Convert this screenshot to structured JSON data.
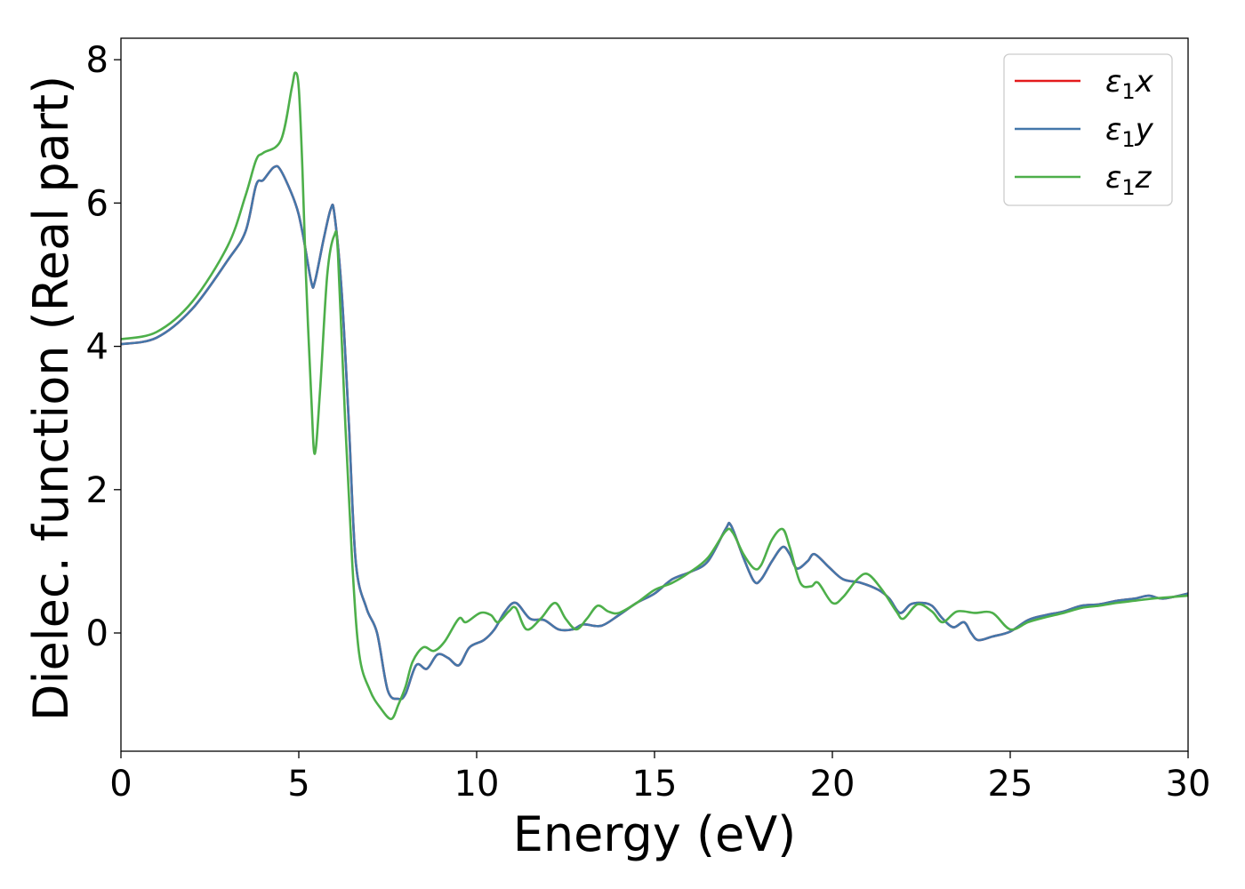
{
  "chart_data": {
    "type": "line",
    "title": "",
    "xlabel": "Energy (eV)",
    "ylabel": "Dielec. function (Real part)",
    "xlim": [
      0,
      30
    ],
    "ylim": [
      -1.65,
      8.3
    ],
    "xticks": [
      0,
      5,
      10,
      15,
      20,
      25,
      30
    ],
    "yticks": [
      0,
      2,
      4,
      6,
      8
    ],
    "grid": false,
    "legend_position": "top-right",
    "series": [
      {
        "name_base": "ε",
        "name_sub": "1",
        "name_suffix": "x",
        "color": "#e41a1c",
        "points": [
          [
            0,
            4.03
          ],
          [
            1,
            4.12
          ],
          [
            2,
            4.52
          ],
          [
            3,
            5.2
          ],
          [
            3.5,
            5.6
          ],
          [
            3.8,
            6.25
          ],
          [
            4.0,
            6.32
          ],
          [
            4.3,
            6.5
          ],
          [
            4.5,
            6.45
          ],
          [
            4.9,
            6.0
          ],
          [
            5.1,
            5.6
          ],
          [
            5.35,
            4.9
          ],
          [
            5.45,
            4.9
          ],
          [
            5.7,
            5.5
          ],
          [
            5.9,
            5.92
          ],
          [
            6.0,
            5.85
          ],
          [
            6.2,
            4.8
          ],
          [
            6.4,
            3.0
          ],
          [
            6.6,
            1.0
          ],
          [
            6.9,
            0.35
          ],
          [
            7.2,
            0.0
          ],
          [
            7.5,
            -0.8
          ],
          [
            7.8,
            -0.92
          ],
          [
            8.0,
            -0.85
          ],
          [
            8.3,
            -0.45
          ],
          [
            8.6,
            -0.5
          ],
          [
            8.9,
            -0.3
          ],
          [
            9.2,
            -0.35
          ],
          [
            9.5,
            -0.45
          ],
          [
            9.8,
            -0.2
          ],
          [
            10.2,
            -0.1
          ],
          [
            10.5,
            0.05
          ],
          [
            10.8,
            0.3
          ],
          [
            11.1,
            0.42
          ],
          [
            11.5,
            0.2
          ],
          [
            11.9,
            0.18
          ],
          [
            12.3,
            0.05
          ],
          [
            12.7,
            0.05
          ],
          [
            13.0,
            0.12
          ],
          [
            13.5,
            0.1
          ],
          [
            14.0,
            0.25
          ],
          [
            14.5,
            0.42
          ],
          [
            15.0,
            0.55
          ],
          [
            15.5,
            0.75
          ],
          [
            16.0,
            0.85
          ],
          [
            16.5,
            1.0
          ],
          [
            17.0,
            1.45
          ],
          [
            17.15,
            1.5
          ],
          [
            17.5,
            1.05
          ],
          [
            17.8,
            0.72
          ],
          [
            18.0,
            0.75
          ],
          [
            18.3,
            1.0
          ],
          [
            18.6,
            1.2
          ],
          [
            18.8,
            1.1
          ],
          [
            19.0,
            0.9
          ],
          [
            19.3,
            1.0
          ],
          [
            19.5,
            1.1
          ],
          [
            19.9,
            0.92
          ],
          [
            20.3,
            0.75
          ],
          [
            20.8,
            0.7
          ],
          [
            21.3,
            0.6
          ],
          [
            21.6,
            0.48
          ],
          [
            21.9,
            0.28
          ],
          [
            22.2,
            0.4
          ],
          [
            22.5,
            0.42
          ],
          [
            22.8,
            0.38
          ],
          [
            23.1,
            0.2
          ],
          [
            23.4,
            0.08
          ],
          [
            23.7,
            0.15
          ],
          [
            23.9,
            0.0
          ],
          [
            24.1,
            -0.1
          ],
          [
            24.5,
            -0.05
          ],
          [
            25.0,
            0.02
          ],
          [
            25.5,
            0.18
          ],
          [
            26.0,
            0.25
          ],
          [
            26.5,
            0.3
          ],
          [
            27.0,
            0.38
          ],
          [
            27.5,
            0.4
          ],
          [
            28.0,
            0.45
          ],
          [
            28.5,
            0.48
          ],
          [
            28.9,
            0.52
          ],
          [
            29.3,
            0.48
          ],
          [
            30,
            0.55
          ]
        ]
      },
      {
        "name_base": "ε",
        "name_sub": "1",
        "name_suffix": "y",
        "color": "#4477aa",
        "points": [
          [
            0,
            4.03
          ],
          [
            1,
            4.12
          ],
          [
            2,
            4.52
          ],
          [
            3,
            5.2
          ],
          [
            3.5,
            5.6
          ],
          [
            3.8,
            6.25
          ],
          [
            4.0,
            6.32
          ],
          [
            4.3,
            6.5
          ],
          [
            4.5,
            6.45
          ],
          [
            4.9,
            6.0
          ],
          [
            5.1,
            5.6
          ],
          [
            5.35,
            4.9
          ],
          [
            5.45,
            4.9
          ],
          [
            5.7,
            5.5
          ],
          [
            5.9,
            5.92
          ],
          [
            6.0,
            5.85
          ],
          [
            6.2,
            4.8
          ],
          [
            6.4,
            3.0
          ],
          [
            6.6,
            1.0
          ],
          [
            6.9,
            0.35
          ],
          [
            7.2,
            0.0
          ],
          [
            7.5,
            -0.8
          ],
          [
            7.8,
            -0.92
          ],
          [
            8.0,
            -0.85
          ],
          [
            8.3,
            -0.45
          ],
          [
            8.6,
            -0.5
          ],
          [
            8.9,
            -0.3
          ],
          [
            9.2,
            -0.35
          ],
          [
            9.5,
            -0.45
          ],
          [
            9.8,
            -0.2
          ],
          [
            10.2,
            -0.1
          ],
          [
            10.5,
            0.05
          ],
          [
            10.8,
            0.3
          ],
          [
            11.1,
            0.42
          ],
          [
            11.5,
            0.2
          ],
          [
            11.9,
            0.18
          ],
          [
            12.3,
            0.05
          ],
          [
            12.7,
            0.05
          ],
          [
            13.0,
            0.12
          ],
          [
            13.5,
            0.1
          ],
          [
            14.0,
            0.25
          ],
          [
            14.5,
            0.42
          ],
          [
            15.0,
            0.55
          ],
          [
            15.5,
            0.75
          ],
          [
            16.0,
            0.85
          ],
          [
            16.5,
            1.0
          ],
          [
            17.0,
            1.45
          ],
          [
            17.15,
            1.5
          ],
          [
            17.5,
            1.05
          ],
          [
            17.8,
            0.72
          ],
          [
            18.0,
            0.75
          ],
          [
            18.3,
            1.0
          ],
          [
            18.6,
            1.2
          ],
          [
            18.8,
            1.1
          ],
          [
            19.0,
            0.9
          ],
          [
            19.3,
            1.0
          ],
          [
            19.5,
            1.1
          ],
          [
            19.9,
            0.92
          ],
          [
            20.3,
            0.75
          ],
          [
            20.8,
            0.7
          ],
          [
            21.3,
            0.6
          ],
          [
            21.6,
            0.48
          ],
          [
            21.9,
            0.28
          ],
          [
            22.2,
            0.4
          ],
          [
            22.5,
            0.42
          ],
          [
            22.8,
            0.38
          ],
          [
            23.1,
            0.2
          ],
          [
            23.4,
            0.08
          ],
          [
            23.7,
            0.15
          ],
          [
            23.9,
            0.0
          ],
          [
            24.1,
            -0.1
          ],
          [
            24.5,
            -0.05
          ],
          [
            25.0,
            0.02
          ],
          [
            25.5,
            0.18
          ],
          [
            26.0,
            0.25
          ],
          [
            26.5,
            0.3
          ],
          [
            27.0,
            0.38
          ],
          [
            27.5,
            0.4
          ],
          [
            28.0,
            0.45
          ],
          [
            28.5,
            0.48
          ],
          [
            28.9,
            0.52
          ],
          [
            29.3,
            0.48
          ],
          [
            30,
            0.55
          ]
        ]
      },
      {
        "name_base": "ε",
        "name_sub": "1",
        "name_suffix": "z",
        "color": "#4daf4a",
        "points": [
          [
            0,
            4.1
          ],
          [
            1,
            4.2
          ],
          [
            2,
            4.62
          ],
          [
            3,
            5.4
          ],
          [
            3.5,
            6.1
          ],
          [
            3.8,
            6.6
          ],
          [
            4.0,
            6.7
          ],
          [
            4.5,
            6.88
          ],
          [
            4.8,
            7.6
          ],
          [
            4.9,
            7.82
          ],
          [
            5.0,
            7.6
          ],
          [
            5.1,
            6.5
          ],
          [
            5.2,
            5.0
          ],
          [
            5.35,
            3.3
          ],
          [
            5.45,
            2.5
          ],
          [
            5.6,
            3.4
          ],
          [
            5.8,
            5.0
          ],
          [
            6.0,
            5.55
          ],
          [
            6.1,
            5.3
          ],
          [
            6.3,
            3.0
          ],
          [
            6.5,
            1.0
          ],
          [
            6.7,
            -0.3
          ],
          [
            7.0,
            -0.8
          ],
          [
            7.3,
            -1.05
          ],
          [
            7.6,
            -1.2
          ],
          [
            7.8,
            -1.0
          ],
          [
            8.0,
            -0.75
          ],
          [
            8.2,
            -0.4
          ],
          [
            8.5,
            -0.2
          ],
          [
            8.8,
            -0.25
          ],
          [
            9.1,
            -0.12
          ],
          [
            9.5,
            0.2
          ],
          [
            9.7,
            0.15
          ],
          [
            10.1,
            0.28
          ],
          [
            10.4,
            0.25
          ],
          [
            10.6,
            0.15
          ],
          [
            10.9,
            0.3
          ],
          [
            11.1,
            0.35
          ],
          [
            11.4,
            0.05
          ],
          [
            11.8,
            0.2
          ],
          [
            12.2,
            0.42
          ],
          [
            12.5,
            0.2
          ],
          [
            12.8,
            0.05
          ],
          [
            13.1,
            0.2
          ],
          [
            13.4,
            0.38
          ],
          [
            13.7,
            0.3
          ],
          [
            14.0,
            0.28
          ],
          [
            14.5,
            0.42
          ],
          [
            15.0,
            0.6
          ],
          [
            15.5,
            0.7
          ],
          [
            16.0,
            0.85
          ],
          [
            16.5,
            1.05
          ],
          [
            17.0,
            1.42
          ],
          [
            17.2,
            1.4
          ],
          [
            17.5,
            1.1
          ],
          [
            17.8,
            0.9
          ],
          [
            18.0,
            0.95
          ],
          [
            18.3,
            1.3
          ],
          [
            18.6,
            1.45
          ],
          [
            18.8,
            1.2
          ],
          [
            19.1,
            0.7
          ],
          [
            19.4,
            0.65
          ],
          [
            19.6,
            0.7
          ],
          [
            20.0,
            0.42
          ],
          [
            20.3,
            0.5
          ],
          [
            20.7,
            0.75
          ],
          [
            21.0,
            0.82
          ],
          [
            21.4,
            0.6
          ],
          [
            21.8,
            0.3
          ],
          [
            22.0,
            0.2
          ],
          [
            22.4,
            0.4
          ],
          [
            22.8,
            0.3
          ],
          [
            23.1,
            0.15
          ],
          [
            23.5,
            0.3
          ],
          [
            24.0,
            0.28
          ],
          [
            24.5,
            0.28
          ],
          [
            25.0,
            0.05
          ],
          [
            25.5,
            0.15
          ],
          [
            26.0,
            0.22
          ],
          [
            26.5,
            0.28
          ],
          [
            27.0,
            0.35
          ],
          [
            27.5,
            0.38
          ],
          [
            28.0,
            0.42
          ],
          [
            28.5,
            0.45
          ],
          [
            29.0,
            0.48
          ],
          [
            29.5,
            0.5
          ],
          [
            30,
            0.52
          ]
        ]
      }
    ]
  }
}
